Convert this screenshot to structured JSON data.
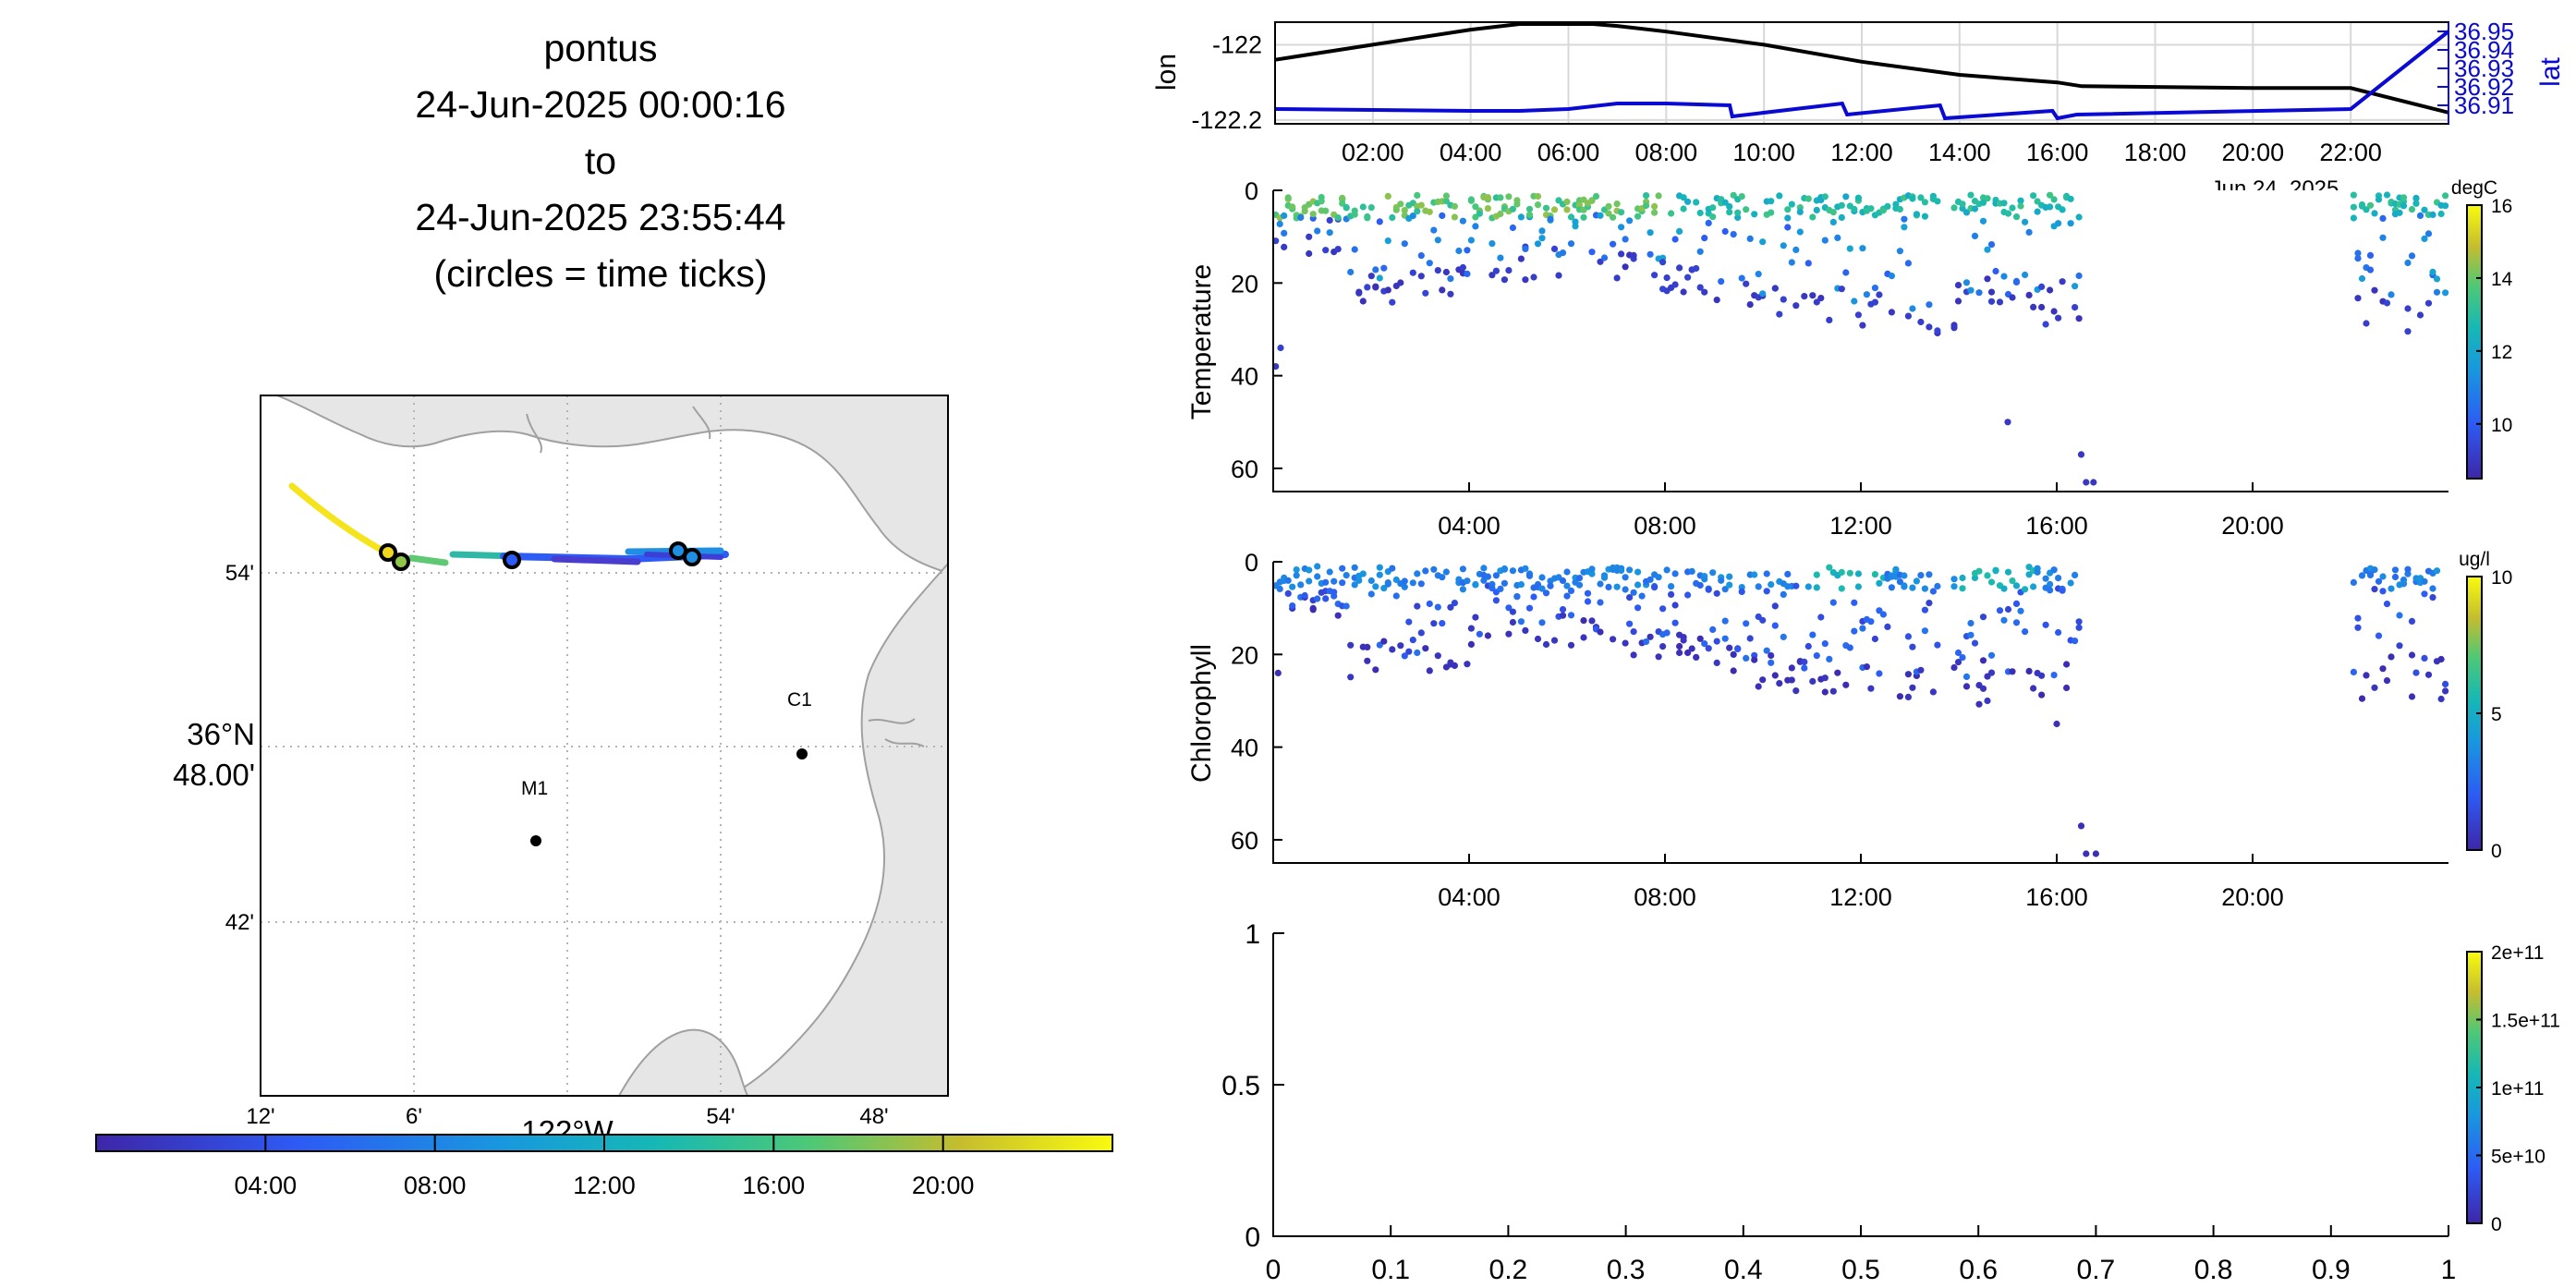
{
  "title_lines": [
    "pontus",
    "24-Jun-2025 00:00:16",
    "to",
    "24-Jun-2025 23:55:44",
    "(circles = time ticks)"
  ],
  "colors": {
    "track_line": "#000000",
    "lat_line": "#0a0ad2",
    "land": "#e6e6e6",
    "coast": "#a0a0a0",
    "grid": "#b4b4b4"
  },
  "map": {
    "lon_tick_labels": [
      "12'",
      "6'",
      "54'",
      "48'"
    ],
    "lon_main_label": "122°W",
    "lat_tick_labels": [
      "54'",
      "42'"
    ],
    "lat_main_label": [
      "36°N",
      "48.00'"
    ],
    "stations": [
      {
        "name": "M1"
      },
      {
        "name": "C1"
      }
    ],
    "time_colorbar_ticks": [
      "04:00",
      "08:00",
      "12:00",
      "16:00",
      "20:00"
    ]
  },
  "chart_data": [
    {
      "type": "line",
      "name": "position-timeseries",
      "x_tick_labels": [
        "02:00",
        "04:00",
        "06:00",
        "08:00",
        "10:00",
        "12:00",
        "14:00",
        "16:00",
        "18:00",
        "20:00",
        "22:00"
      ],
      "x_date_label": "Jun 24, 2025",
      "left_axis": {
        "label": "lon",
        "ticks": [
          "-122",
          "-122.2"
        ],
        "ylim": [
          -122.21,
          -121.94
        ]
      },
      "right_axis": {
        "label": "lat",
        "ticks": [
          "36.95",
          "36.94",
          "36.93",
          "36.92",
          "36.91"
        ],
        "ylim": [
          36.9,
          36.955
        ]
      },
      "series": [
        {
          "axis": "left",
          "hours": [
            0,
            2,
            4,
            5,
            6.5,
            7,
            8,
            10,
            12,
            14,
            16,
            16.5,
            20,
            22,
            24
          ],
          "values": [
            -122.04,
            -122.0,
            -121.96,
            -121.945,
            -121.945,
            -121.95,
            -121.965,
            -122.0,
            -122.045,
            -122.08,
            -122.1,
            -122.11,
            -122.115,
            -122.115,
            -122.18
          ]
        },
        {
          "axis": "right",
          "hours": [
            0,
            4,
            5,
            6,
            7,
            8,
            9.3,
            9.35,
            11.6,
            11.7,
            13.6,
            13.7,
            15.9,
            16,
            16.4,
            22,
            24
          ],
          "values": [
            36.908,
            36.907,
            36.907,
            36.908,
            36.911,
            36.911,
            36.91,
            36.904,
            36.911,
            36.905,
            36.91,
            36.903,
            36.907,
            36.903,
            36.905,
            36.908,
            36.95
          ]
        }
      ]
    },
    {
      "type": "scatter",
      "name": "temperature-section",
      "ylabel": "Temperature",
      "x_tick_labels": [
        "04:00",
        "08:00",
        "12:00",
        "16:00",
        "20:00"
      ],
      "xlim_hours": [
        0,
        24
      ],
      "ylim": [
        0,
        65
      ],
      "y_ticks": [
        "0",
        "20",
        "40",
        "60"
      ],
      "colorbar": {
        "unit": "degC",
        "ticks": [
          "16",
          "14",
          "12",
          "10"
        ],
        "range": [
          8.5,
          16
        ]
      },
      "seed": 7,
      "gaps_hours": [
        [
          13.6,
          13.9
        ],
        [
          16.5,
          22
        ]
      ],
      "tail_points": [
        [
          0.05,
          38,
          9
        ],
        [
          0.15,
          34,
          9.2
        ],
        [
          15.0,
          50,
          9
        ],
        [
          16.5,
          57,
          9
        ],
        [
          16.6,
          63,
          9
        ],
        [
          16.75,
          63,
          9
        ]
      ]
    },
    {
      "type": "scatter",
      "name": "chlorophyll-section",
      "ylabel": "Chlorophyll",
      "x_tick_labels": [
        "04:00",
        "08:00",
        "12:00",
        "16:00",
        "20:00"
      ],
      "xlim_hours": [
        0,
        24
      ],
      "ylim": [
        0,
        65
      ],
      "y_ticks": [
        "0",
        "20",
        "40",
        "60"
      ],
      "colorbar": {
        "unit": "ug/l",
        "ticks": [
          "10",
          "5",
          "0"
        ],
        "range": [
          0,
          10
        ]
      },
      "seed": 19,
      "gaps_hours": [
        [
          13.6,
          13.9
        ],
        [
          16.5,
          22
        ]
      ],
      "tail_points": [
        [
          0.1,
          24,
          0.4
        ],
        [
          16.0,
          35,
          0.4
        ],
        [
          16.5,
          57,
          0.4
        ],
        [
          16.6,
          63,
          0.4
        ],
        [
          16.8,
          63,
          0.4
        ]
      ]
    },
    {
      "type": "scatter",
      "name": "empty-panel",
      "xlim": [
        0,
        1
      ],
      "ylim": [
        0,
        1
      ],
      "x_tick_labels": [
        "0",
        "0.1",
        "0.2",
        "0.3",
        "0.4",
        "0.5",
        "0.6",
        "0.7",
        "0.8",
        "0.9",
        "1"
      ],
      "y_tick_labels": [
        "0",
        "0.5",
        "1"
      ],
      "colorbar": {
        "ticks": [
          "2e+11",
          "1.5e+11",
          "1e+11",
          "5e+10",
          "0"
        ],
        "range": [
          0,
          200000000000.0
        ]
      },
      "values": []
    }
  ]
}
